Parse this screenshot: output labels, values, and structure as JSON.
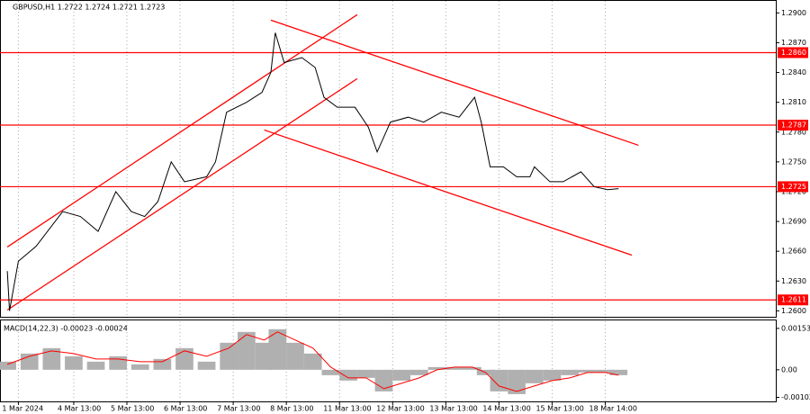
{
  "chart_data": [
    {
      "type": "line",
      "title": "GBPUSD,H1 1.2722 1.2724 1.2721 1.2723",
      "x": [
        0,
        1,
        5,
        13,
        25,
        33,
        41,
        49,
        56,
        62,
        68,
        74,
        80,
        90,
        94,
        99,
        108,
        115,
        119,
        121,
        125,
        133,
        139,
        143,
        149,
        157,
        163,
        167,
        173,
        181,
        188,
        196,
        204,
        211,
        214,
        218,
        224,
        230,
        236,
        238,
        245,
        251,
        259,
        265,
        271,
        276
      ],
      "series": [
        {
          "color": "#000000",
          "values": [
            1.264,
            1.26,
            1.265,
            1.2665,
            1.27,
            1.2695,
            1.268,
            1.272,
            1.27,
            1.2695,
            1.271,
            1.275,
            1.273,
            1.2735,
            1.275,
            1.28,
            1.281,
            1.282,
            1.284,
            1.288,
            1.285,
            1.2855,
            1.2845,
            1.2815,
            1.2805,
            1.2805,
            1.2785,
            1.276,
            1.279,
            1.2795,
            1.279,
            1.28,
            1.2795,
            1.2815,
            1.279,
            1.2745,
            1.2745,
            1.2735,
            1.2735,
            1.2745,
            1.273,
            1.273,
            1.274,
            1.2725,
            1.2722,
            1.2723
          ]
        }
      ],
      "xlim": [
        -3.3,
        347
      ],
      "ylim": [
        1.2594,
        1.2913
      ],
      "xticks": [
        {
          "value": 5,
          "label": "1 Mar 2024"
        },
        {
          "value": 30,
          "label": "4 Mar 13:00"
        },
        {
          "value": 54,
          "label": "5 Mar 13:00"
        },
        {
          "value": 78,
          "label": "6 Mar 13:00"
        },
        {
          "value": 102,
          "label": "7 Mar 13:00"
        },
        {
          "value": 126,
          "label": "8 Mar 13:00"
        },
        {
          "value": 150,
          "label": "11 Mar 13:00"
        },
        {
          "value": 174,
          "label": "12 Mar 13:00"
        },
        {
          "value": 198,
          "label": "13 Mar 13:00"
        },
        {
          "value": 222,
          "label": "14 Mar 13:00"
        },
        {
          "value": 246,
          "label": "15 Mar 13:00"
        },
        {
          "value": 270,
          "label": "18 Mar 14:00"
        }
      ],
      "yticks": [
        {
          "value": 1.26,
          "label": "1.2600"
        },
        {
          "value": 1.263,
          "label": "1.2630"
        },
        {
          "value": 1.266,
          "label": "1.2660"
        },
        {
          "value": 1.269,
          "label": "1.2690"
        },
        {
          "value": 1.272,
          "label": "1.2720"
        },
        {
          "value": 1.275,
          "label": "1.2750"
        },
        {
          "value": 1.278,
          "label": "1.2780"
        },
        {
          "value": 1.281,
          "label": "1.2810"
        },
        {
          "value": 1.284,
          "label": "1.2840"
        },
        {
          "value": 1.287,
          "label": "1.2870"
        },
        {
          "value": 1.29,
          "label": "1.2900"
        }
      ],
      "levels": [
        {
          "value": 1.286,
          "label": "1.2860"
        },
        {
          "value": 1.2787,
          "label": "1.2787"
        },
        {
          "value": 1.2725,
          "label": "1.2725"
        },
        {
          "value": 1.2611,
          "label": "1.2611"
        }
      ],
      "level_color": "#ff0000",
      "trendlines": [
        {
          "x": [
            0,
            158
          ],
          "y": [
            1.26643,
            1.28982
          ]
        },
        {
          "x": [
            0,
            158
          ],
          "y": [
            1.26008,
            1.28338
          ]
        },
        {
          "x": [
            119,
            285
          ],
          "y": [
            1.28927,
            1.27667
          ]
        },
        {
          "x": [
            116,
            282
          ],
          "y": [
            1.27821,
            1.26561
          ]
        }
      ],
      "grid": true
    },
    {
      "type": "macd",
      "title": "MACD(14,22,3) -0.00023 -0.00024",
      "x": [
        0,
        10,
        20,
        30,
        40,
        50,
        60,
        70,
        80,
        90,
        100,
        108,
        116,
        122,
        130,
        138,
        146,
        154,
        162,
        170,
        178,
        186,
        194,
        202,
        210,
        216,
        222,
        230,
        238,
        246,
        254,
        262,
        270,
        276
      ],
      "series": [
        {
          "color": "#b0b0b0",
          "values": [
            0.0003,
            0.0006,
            0.0008,
            0.0005,
            0.0003,
            0.0005,
            0.0002,
            0.0004,
            0.0008,
            0.0003,
            0.001,
            0.0014,
            0.001,
            0.0015,
            0.001,
            0.0006,
            -0.0002,
            -0.0004,
            -0.0003,
            -0.0008,
            -0.0004,
            -0.0002,
            0.0001,
            0.0001,
            0.0001,
            -0.0002,
            -0.0008,
            -0.0009,
            -0.0005,
            -0.0004,
            -0.0002,
            -0.0001,
            -0.0001,
            -0.0002
          ]
        },
        {
          "color": "#ff0000",
          "values": [
            0.0002,
            0.0005,
            0.0007,
            0.0006,
            0.0004,
            0.0004,
            0.0003,
            0.0003,
            0.0007,
            0.0005,
            0.0008,
            0.0013,
            0.0011,
            0.0014,
            0.0011,
            0.0008,
            0.0001,
            -0.0003,
            -0.0003,
            -0.0007,
            -0.0005,
            -0.0003,
            0,
            0.0001,
            0.0001,
            -0.0001,
            -0.0006,
            -0.0008,
            -0.0006,
            -0.0004,
            -0.0003,
            -0.0001,
            -0.0001,
            -0.0002
          ]
        }
      ],
      "xlim": [
        -3.3,
        347
      ],
      "ylim": [
        -0.00117,
        0.00186
      ],
      "yticks": [
        0.00153,
        {
          "value": 0,
          "label": "0.00"
        },
        -0.00102
      ]
    }
  ]
}
